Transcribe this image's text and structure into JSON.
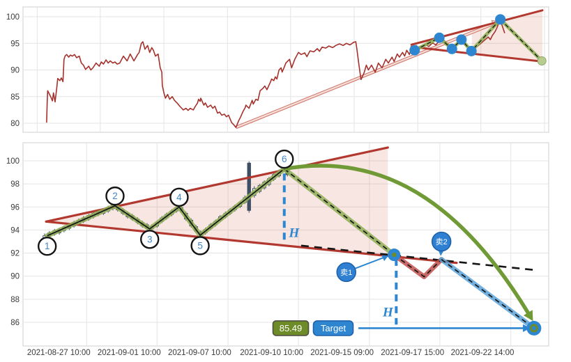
{
  "colors": {
    "price_line": "#a5312c",
    "trend": "#b2382f",
    "wedge_fill": "rgba(214,98,77,0.16)",
    "green": "#8fae56",
    "green_dark": "#6f9a36",
    "olive": "#6d8c28",
    "blue": "#2e86d0",
    "blue_badge": "#2f7fd2",
    "blue_badge_border": "#1d5fa6",
    "blue_seg": "#5aa2d8",
    "red_seg": "#c0504d",
    "black": "#151515",
    "candle": "#3f4e63",
    "grid": "#e4e4e4",
    "border": "#cfcfcf",
    "axis_text": "#3a3a3a",
    "pivot_num": "#3f87c9",
    "pale_dot": "#b8cc90",
    "channel": "#cf7a6e"
  },
  "chart_data": [
    {
      "type": "line",
      "name": "price-history-overview",
      "ylabel": "price",
      "y_ticks": [
        80,
        85,
        90,
        95,
        100
      ],
      "grid_x_t": [
        0.027,
        0.147,
        0.268,
        0.389,
        0.509,
        0.63,
        0.751,
        0.871,
        0.992
      ],
      "price_series_tp": [
        0.045,
        80.2,
        0.046,
        84.0,
        0.047,
        86.1,
        0.053,
        84.9,
        0.056,
        84.2,
        0.058,
        85.7,
        0.061,
        84.0,
        0.064,
        86.5,
        0.066,
        88.4,
        0.07,
        88.0,
        0.073,
        88.5,
        0.076,
        87.8,
        0.078,
        92.0,
        0.08,
        92.6,
        0.083,
        92.9,
        0.087,
        92.4,
        0.09,
        92.8,
        0.094,
        92.6,
        0.098,
        92.9,
        0.102,
        92.3,
        0.107,
        92.6,
        0.111,
        91.3,
        0.115,
        90.9,
        0.119,
        90.1,
        0.125,
        90.7,
        0.129,
        90.0,
        0.133,
        90.4,
        0.139,
        91.3,
        0.145,
        90.7,
        0.149,
        91.5,
        0.153,
        91.1,
        0.158,
        91.9,
        0.162,
        91.3,
        0.166,
        91.7,
        0.171,
        91.3,
        0.175,
        91.5,
        0.179,
        91.1,
        0.184,
        91.3,
        0.191,
        92.6,
        0.198,
        91.7,
        0.204,
        93.0,
        0.211,
        91.7,
        0.218,
        92.9,
        0.221,
        93.3,
        0.225,
        95.0,
        0.228,
        95.3,
        0.232,
        93.9,
        0.237,
        94.6,
        0.241,
        93.3,
        0.245,
        94.2,
        0.248,
        93.7,
        0.252,
        92.6,
        0.257,
        93.0,
        0.261,
        90.4,
        0.264,
        89.6,
        0.265,
        87.1,
        0.268,
        85.7,
        0.271,
        84.7,
        0.275,
        85.4,
        0.279,
        84.5,
        0.284,
        85.0,
        0.288,
        84.3,
        0.294,
        83.7,
        0.298,
        83.2,
        0.305,
        82.5,
        0.31,
        82.8,
        0.314,
        82.4,
        0.318,
        82.8,
        0.324,
        82.5,
        0.328,
        83.2,
        0.332,
        83.8,
        0.334,
        84.5,
        0.337,
        84.1,
        0.338,
        84.7,
        0.344,
        83.4,
        0.347,
        83.8,
        0.351,
        83.0,
        0.357,
        83.4,
        0.361,
        82.8,
        0.365,
        83.2,
        0.37,
        81.9,
        0.374,
        82.1,
        0.378,
        81.5,
        0.383,
        81.7,
        0.387,
        81.2,
        0.391,
        81.5,
        0.397,
        80.1,
        0.401,
        79.7,
        0.405,
        79.2,
        0.41,
        80.4,
        0.414,
        81.2,
        0.418,
        82.1,
        0.423,
        83.0,
        0.424,
        83.4,
        0.43,
        82.8,
        0.434,
        83.8,
        0.436,
        84.3,
        0.438,
        83.6,
        0.443,
        84.5,
        0.447,
        84.3,
        0.451,
        86.1,
        0.456,
        86.5,
        0.46,
        87.0,
        0.464,
        86.3,
        0.47,
        87.6,
        0.473,
        88.3,
        0.477,
        88.0,
        0.48,
        88.7,
        0.483,
        88.3,
        0.487,
        90.0,
        0.491,
        90.4,
        0.493,
        89.6,
        0.496,
        90.3,
        0.5,
        91.3,
        0.507,
        92.0,
        0.511,
        90.4,
        0.517,
        92.0,
        0.524,
        93.3,
        0.529,
        92.9,
        0.536,
        93.2,
        0.54,
        92.5,
        0.546,
        93.6,
        0.553,
        93.4,
        0.56,
        94.0,
        0.564,
        93.5,
        0.569,
        94.3,
        0.576,
        94.1,
        0.582,
        94.5,
        0.589,
        94.2,
        0.595,
        94.6,
        0.602,
        94.9,
        0.609,
        94.6,
        0.615,
        95.0,
        0.622,
        94.7,
        0.629,
        95.2,
        0.633,
        95.3,
        0.635,
        94.0,
        0.639,
        91.0,
        0.643,
        88.2,
        0.649,
        89.5,
        0.653,
        90.9,
        0.657,
        90.0,
        0.663,
        90.9,
        0.67,
        89.6,
        0.676,
        91.3,
        0.683,
        90.4,
        0.69,
        92.0,
        0.695,
        91.3,
        0.702,
        92.4,
        0.706,
        91.6,
        0.712,
        93.0,
        0.716,
        92.4,
        0.722,
        93.3,
        0.726,
        92.6,
        0.73,
        93.7,
        0.735,
        92.9,
        0.739,
        94.2,
        0.743,
        93.6,
        0.748,
        94.6,
        0.752,
        93.9,
        0.759,
        94.2,
        0.765,
        94.8,
        0.772,
        94.4,
        0.779,
        95.1,
        0.785,
        94.7,
        0.792,
        95.4,
        0.798,
        95.8,
        0.805,
        95.2,
        0.812,
        94.6,
        0.818,
        94.3,
        0.825,
        94.8,
        0.832,
        95.3,
        0.838,
        94.9,
        0.845,
        94.4,
        0.851,
        93.8,
        0.858,
        94.0,
        0.865,
        94.5,
        0.871,
        95.0,
        0.878,
        95.6,
        0.885,
        96.2,
        0.889,
        95.7,
        0.893,
        96.5,
        0.898,
        97.2,
        0.902,
        98.0,
        0.906,
        99.2,
        0.908,
        99.4,
        0.912,
        98.2,
        0.916,
        97.0
      ],
      "zigzag_dots_tp": [
        [
          0.745,
          93.7
        ],
        [
          0.792,
          96.05
        ],
        [
          0.816,
          93.95
        ],
        [
          0.834,
          95.7
        ],
        [
          0.853,
          93.55
        ],
        [
          0.908,
          99.5
        ]
      ],
      "projection_end_tp": [
        0.987,
        91.7
      ],
      "trend_upper_tp": [
        [
          0.739,
          94.74
        ],
        [
          0.988,
          101.2
        ]
      ],
      "trend_lower_tp": [
        [
          0.739,
          94.34
        ],
        [
          0.988,
          91.58
        ]
      ],
      "channel_arrow_tp": [
        [
          0.405,
          79.2
        ],
        [
          0.898,
          98.8
        ]
      ],
      "wedge_fill_tp": [
        [
          0.854,
          97.8
        ],
        [
          0.988,
          101.2
        ],
        [
          0.988,
          91.6
        ],
        [
          0.854,
          93.1
        ]
      ]
    },
    {
      "type": "candlestick",
      "name": "pattern-detail-chart",
      "y_ticks": [
        86,
        88,
        90,
        92,
        94,
        96,
        98,
        100
      ],
      "x_tick_labels": [
        {
          "label": "2021-08-27 10:00",
          "t": 0.068
        },
        {
          "label": "2021-09-01 10:00",
          "t": 0.202
        },
        {
          "label": "2021-09-07 10:00",
          "t": 0.336
        },
        {
          "label": "2021-09-10 10:00",
          "t": 0.473
        },
        {
          "label": "2021-09-15 09:00",
          "t": 0.607
        },
        {
          "label": "2021-09-17 15:00",
          "t": 0.741
        },
        {
          "label": "2021-09-22 14:00",
          "t": 0.874
        }
      ],
      "grid_x_t": [
        0.121,
        0.255,
        0.39,
        0.524,
        0.659,
        0.793,
        0.928
      ],
      "candles_tohlc": [
        [
          0.041,
          93.3,
          93.7,
          93.1,
          93.5
        ],
        [
          0.05,
          93.75,
          93.9,
          93.3,
          93.45
        ],
        [
          0.06,
          93.65,
          94.1,
          93.5,
          93.95
        ],
        [
          0.069,
          94.05,
          94.2,
          93.6,
          93.75
        ],
        [
          0.078,
          93.95,
          94.4,
          93.8,
          94.25
        ],
        [
          0.088,
          94.45,
          94.6,
          94.0,
          94.15
        ],
        [
          0.097,
          94.35,
          94.8,
          94.2,
          94.65
        ],
        [
          0.106,
          94.55,
          95.0,
          94.4,
          94.85
        ],
        [
          0.115,
          95.05,
          95.2,
          94.6,
          94.75
        ],
        [
          0.125,
          94.95,
          95.4,
          94.8,
          95.25
        ],
        [
          0.134,
          95.15,
          95.6,
          95.0,
          95.45
        ],
        [
          0.143,
          95.65,
          95.8,
          95.2,
          95.35
        ],
        [
          0.153,
          95.45,
          95.9,
          95.3,
          95.75
        ],
        [
          0.162,
          95.65,
          96.1,
          95.5,
          95.95
        ],
        [
          0.171,
          95.85,
          96.3,
          95.7,
          96.15
        ],
        [
          0.18,
          96.05,
          96.2,
          95.6,
          95.75
        ],
        [
          0.19,
          95.75,
          95.9,
          95.3,
          95.45
        ],
        [
          0.199,
          95.45,
          95.6,
          95.0,
          95.15
        ],
        [
          0.208,
          95.25,
          95.4,
          94.8,
          94.95
        ],
        [
          0.218,
          94.95,
          95.1,
          94.5,
          94.65
        ],
        [
          0.227,
          94.65,
          94.8,
          94.2,
          94.35
        ],
        [
          0.236,
          94.45,
          94.6,
          94.0,
          94.15
        ],
        [
          0.245,
          94.1,
          94.5,
          93.95,
          94.3
        ],
        [
          0.255,
          94.35,
          94.8,
          94.2,
          94.65
        ],
        [
          0.264,
          94.75,
          95.2,
          94.6,
          95.05
        ],
        [
          0.273,
          95.05,
          95.5,
          94.9,
          95.35
        ],
        [
          0.283,
          95.35,
          95.8,
          95.2,
          95.65
        ],
        [
          0.292,
          95.65,
          96.1,
          95.5,
          95.95
        ],
        [
          0.301,
          95.95,
          96.1,
          95.5,
          95.65
        ],
        [
          0.31,
          95.45,
          95.6,
          94.8,
          94.95
        ],
        [
          0.32,
          94.85,
          95.0,
          94.2,
          94.35
        ],
        [
          0.329,
          94.3,
          94.45,
          93.75,
          93.9
        ],
        [
          0.338,
          93.8,
          93.95,
          93.25,
          93.4
        ],
        [
          0.347,
          93.75,
          94.2,
          93.6,
          94.05
        ],
        [
          0.357,
          94.15,
          94.6,
          94.0,
          94.45
        ],
        [
          0.366,
          94.45,
          94.9,
          94.3,
          94.75
        ],
        [
          0.375,
          94.85,
          95.3,
          94.7,
          95.15
        ],
        [
          0.385,
          95.15,
          95.6,
          95.0,
          95.45
        ],
        [
          0.394,
          95.45,
          95.9,
          95.3,
          95.75
        ],
        [
          0.403,
          95.75,
          96.2,
          95.6,
          96.05
        ],
        [
          0.413,
          96.05,
          96.5,
          95.9,
          96.35
        ],
        [
          0.422,
          96.4,
          97.0,
          96.25,
          96.8
        ],
        [
          0.43,
          99.8,
          99.95,
          95.5,
          95.7
        ],
        [
          0.44,
          97.0,
          97.8,
          96.8,
          97.6
        ],
        [
          0.45,
          97.35,
          98.0,
          97.2,
          97.85
        ],
        [
          0.459,
          97.65,
          98.3,
          97.5,
          98.15
        ],
        [
          0.468,
          97.95,
          98.6,
          97.8,
          98.45
        ],
        [
          0.477,
          98.4,
          98.95,
          98.25,
          98.8
        ],
        [
          0.487,
          98.7,
          99.25,
          98.55,
          99.1
        ],
        [
          0.496,
          99.15,
          99.55,
          99.0,
          99.45
        ],
        [
          0.503,
          99.2,
          99.35,
          98.65,
          98.8
        ]
      ],
      "pivots": [
        {
          "label": "1",
          "t": 0.046,
          "price": 93.5,
          "mark": "below"
        },
        {
          "label": "2",
          "t": 0.175,
          "price": 96.1,
          "mark": "above"
        },
        {
          "label": "3",
          "t": 0.241,
          "price": 94.1,
          "mark": "below"
        },
        {
          "label": "4",
          "t": 0.297,
          "price": 96.0,
          "mark": "above"
        },
        {
          "label": "5",
          "t": 0.337,
          "price": 93.55,
          "mark": "below"
        },
        {
          "label": "6",
          "t": 0.497,
          "price": 99.3,
          "mark": "above"
        }
      ],
      "breakdown_point": {
        "t": 0.706,
        "price": 91.85
      },
      "pullback_low": {
        "t": 0.763,
        "price": 89.95
      },
      "retest_point": {
        "t": 0.796,
        "price": 91.45
      },
      "target_point": {
        "t": 0.972,
        "price": 85.49
      },
      "trend_upper_tp": [
        [
          0.044,
          94.73
        ],
        [
          0.694,
          101.15
        ]
      ],
      "trend_lower_tp": [
        [
          0.044,
          94.73
        ],
        [
          0.825,
          91.15
        ]
      ],
      "trend_lower_dashed_tp": [
        [
          0.529,
          92.65
        ],
        [
          0.98,
          90.5
        ]
      ],
      "wedge_fill_tp": [
        [
          0.044,
          94.73
        ],
        [
          0.694,
          101.15
        ],
        [
          0.694,
          91.76
        ]
      ],
      "sell_markers": [
        {
          "label": "卖1",
          "t": 0.615,
          "price": 90.35
        },
        {
          "label": "卖2",
          "t": 0.796,
          "price": 93.0
        }
      ],
      "h_measure_1": {
        "t": 0.497,
        "from_price": 98.9,
        "to_price": 92.9
      },
      "h_measure_2": {
        "t": 0.71,
        "from_price": 91.5,
        "to_price": 85.8
      },
      "target_line": {
        "price": 85.49,
        "from_t": 0.638,
        "to_t": 0.955
      },
      "labels": {
        "h": "H",
        "target": "Target",
        "target_price": "85.49",
        "sell1": "卖1",
        "sell2": "卖2"
      }
    }
  ]
}
